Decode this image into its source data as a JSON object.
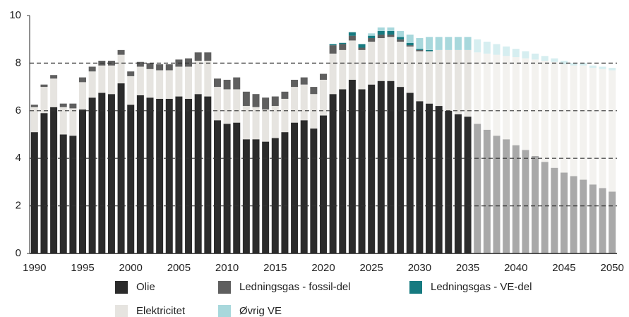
{
  "chart_data": {
    "type": "stacked_bar",
    "categories": [
      "1990",
      null,
      null,
      null,
      null,
      "1995",
      null,
      null,
      null,
      null,
      "2000",
      null,
      null,
      null,
      null,
      "2005",
      null,
      null,
      null,
      null,
      "2010",
      null,
      null,
      null,
      null,
      "2015",
      null,
      null,
      null,
      null,
      "2020",
      null,
      null,
      null,
      null,
      "2025",
      null,
      null,
      null,
      null,
      "2030",
      null,
      null,
      null,
      null,
      "2035",
      null,
      null,
      null,
      null,
      "2040",
      null,
      null,
      null,
      null,
      "2045",
      null,
      null,
      null,
      null,
      "2050"
    ],
    "series": [
      {
        "name": "Olie",
        "color": "#2b2b2b",
        "forecast_color": "#a9a9a9",
        "values": [
          5.1,
          5.9,
          6.15,
          5.0,
          4.95,
          6.05,
          6.55,
          6.75,
          6.7,
          7.15,
          6.25,
          6.65,
          6.55,
          6.5,
          6.5,
          6.6,
          6.5,
          6.7,
          6.6,
          5.6,
          5.45,
          5.5,
          4.8,
          4.8,
          4.7,
          4.85,
          5.1,
          5.5,
          5.6,
          5.25,
          5.8,
          6.7,
          6.9,
          7.3,
          6.9,
          7.1,
          7.25,
          7.25,
          7.0,
          6.75,
          6.4,
          6.3,
          6.2,
          6.0,
          5.85,
          5.75,
          5.45,
          5.2,
          4.95,
          4.8,
          4.55,
          4.35,
          4.1,
          3.85,
          3.6,
          3.4,
          3.25,
          3.1,
          2.9,
          2.75,
          2.6
        ]
      },
      {
        "name": "Ledningsgas - fossil-del",
        "color": "#5f5f5f",
        "forecast_color": "#b8b8b8",
        "values": [
          0.1,
          0.1,
          0.15,
          0.15,
          0.2,
          0.2,
          0.2,
          0.2,
          0.2,
          0.2,
          0.2,
          0.2,
          0.25,
          0.25,
          0.25,
          0.3,
          0.35,
          0.35,
          0.35,
          0.35,
          0.4,
          0.5,
          0.6,
          0.55,
          0.5,
          0.4,
          0.3,
          0.3,
          0.3,
          0.3,
          0.25,
          0.35,
          0.25,
          0.2,
          0.1,
          0.15,
          0.15,
          0.1,
          0.1,
          0.05,
          0.05,
          0,
          0,
          0,
          0,
          0,
          0,
          0,
          0,
          0,
          0,
          0,
          0,
          0,
          0,
          0,
          0,
          0,
          0,
          0,
          0
        ]
      },
      {
        "name": "Ledningsgas - VE-del",
        "color": "#167a80",
        "forecast_color": "#8cc2c5",
        "values": [
          0,
          0,
          0,
          0,
          0,
          0,
          0,
          0,
          0,
          0,
          0,
          0,
          0,
          0,
          0,
          0,
          0,
          0,
          0,
          0,
          0,
          0,
          0,
          0,
          0,
          0,
          0,
          0,
          0,
          0,
          0,
          0.05,
          0.05,
          0.15,
          0.15,
          0.1,
          0.15,
          0.15,
          0.1,
          0.1,
          0.05,
          0.05,
          0,
          0,
          0,
          0,
          0,
          0,
          0,
          0,
          0,
          0,
          0,
          0,
          0,
          0,
          0,
          0,
          0,
          0,
          0
        ]
      },
      {
        "name": "Elektricitet",
        "color": "#e6e4e0",
        "forecast_color": "#f3f2ef",
        "values": [
          1.05,
          1.1,
          1.2,
          1.15,
          1.15,
          1.15,
          1.1,
          1.15,
          1.2,
          1.2,
          1.2,
          1.2,
          1.2,
          1.2,
          1.2,
          1.25,
          1.35,
          1.4,
          1.5,
          1.4,
          1.45,
          1.4,
          1.4,
          1.35,
          1.35,
          1.35,
          1.4,
          1.5,
          1.5,
          1.45,
          1.5,
          1.7,
          1.65,
          1.65,
          1.65,
          1.8,
          1.8,
          1.85,
          1.9,
          1.95,
          2.1,
          2.2,
          2.35,
          2.55,
          2.7,
          2.8,
          3.0,
          3.2,
          3.4,
          3.5,
          3.7,
          3.85,
          4.05,
          4.25,
          4.45,
          4.55,
          4.65,
          4.8,
          4.9,
          5.0,
          5.1
        ]
      },
      {
        "name": "Øvrig VE",
        "color": "#a8d8dc",
        "forecast_color": "#d6eef0",
        "values": [
          0,
          0,
          0,
          0,
          0,
          0,
          0,
          0,
          0,
          0,
          0,
          0,
          0,
          0,
          0,
          0,
          0,
          0,
          0,
          0,
          0,
          0,
          0,
          0,
          0,
          0,
          0,
          0,
          0,
          0,
          0,
          0,
          0,
          0,
          0,
          0.1,
          0.15,
          0.15,
          0.25,
          0.35,
          0.45,
          0.55,
          0.55,
          0.55,
          0.55,
          0.55,
          0.55,
          0.5,
          0.45,
          0.4,
          0.35,
          0.3,
          0.25,
          0.2,
          0.15,
          0.15,
          0.1,
          0.1,
          0.1,
          0.1,
          0.1
        ]
      }
    ],
    "forecast_from": 2036,
    "ylim": [
      0,
      10
    ],
    "yticks": [
      0,
      2,
      4,
      6,
      8,
      10
    ],
    "grid": true
  }
}
